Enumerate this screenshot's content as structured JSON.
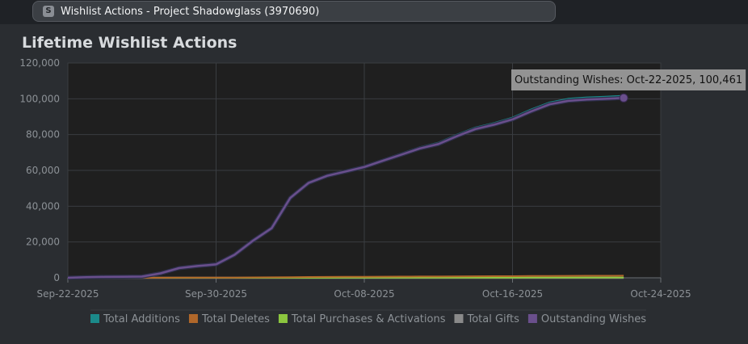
{
  "window": {
    "favicon_letter": "S",
    "tab_title": "Wishlist Actions - Project Shadowglass (3970690)"
  },
  "page": {
    "title": "Lifetime Wishlist Actions"
  },
  "tooltip": {
    "text": "Outstanding Wishes: Oct-22-2025, 100,461"
  },
  "colors": {
    "plot_background": "#1f1f1f",
    "grid": "#3a3d41",
    "total_additions": "#1b8a8a",
    "total_deletes": "#b0672a",
    "total_purchases": "#8cc63f",
    "total_gifts": "#8a8a8a",
    "outstanding_wishes": "#6a4f8c"
  },
  "chart_data": {
    "type": "line",
    "title": "Lifetime Wishlist Actions",
    "x_ticks": [
      "Sep-22-2025",
      "Sep-30-2025",
      "Oct-08-2025",
      "Oct-16-2025",
      "Oct-24-2025"
    ],
    "x_range": [
      "2025-09-22",
      "2025-10-24"
    ],
    "y_ticks": [
      "0",
      "20,000",
      "40,000",
      "60,000",
      "80,000",
      "100,000",
      "120,000"
    ],
    "ylim": [
      0,
      120000
    ],
    "grid": true,
    "legend_position": "bottom",
    "x": [
      "2025-09-22",
      "2025-09-23",
      "2025-09-24",
      "2025-09-25",
      "2025-09-26",
      "2025-09-27",
      "2025-09-28",
      "2025-09-29",
      "2025-09-30",
      "2025-10-01",
      "2025-10-02",
      "2025-10-03",
      "2025-10-04",
      "2025-10-05",
      "2025-10-06",
      "2025-10-07",
      "2025-10-08",
      "2025-10-09",
      "2025-10-10",
      "2025-10-11",
      "2025-10-12",
      "2025-10-13",
      "2025-10-14",
      "2025-10-15",
      "2025-10-16",
      "2025-10-17",
      "2025-10-18",
      "2025-10-19",
      "2025-10-20",
      "2025-10-21",
      "2025-10-22"
    ],
    "series": [
      {
        "name": "Total Additions",
        "color": "#1b8a8a",
        "values": [
          0,
          300,
          500,
          600,
          700,
          2500,
          5500,
          6700,
          7600,
          13000,
          21000,
          28000,
          45000,
          53500,
          57500,
          60000,
          62500,
          66000,
          69500,
          73000,
          75500,
          80000,
          84000,
          86500,
          89500,
          94000,
          98000,
          100000,
          100800,
          101200,
          101700
        ]
      },
      {
        "name": "Total Deletes",
        "color": "#b0672a",
        "values": [
          0,
          5,
          10,
          15,
          20,
          40,
          70,
          90,
          110,
          150,
          210,
          270,
          380,
          450,
          500,
          540,
          580,
          620,
          660,
          700,
          740,
          790,
          840,
          880,
          920,
          980,
          1040,
          1090,
          1120,
          1150,
          1180
        ]
      },
      {
        "name": "Total Purchases & Activations",
        "color": "#8cc63f",
        "values": [
          0,
          0,
          0,
          0,
          0,
          1,
          2,
          3,
          4,
          6,
          8,
          10,
          14,
          18,
          22,
          26,
          30,
          34,
          38,
          42,
          46,
          50,
          55,
          60,
          65,
          70,
          75,
          80,
          84,
          88,
          92
        ]
      },
      {
        "name": "Total Gifts",
        "color": "#8a8a8a",
        "values": [
          0,
          0,
          0,
          0,
          0,
          0,
          0,
          0,
          1,
          1,
          1,
          1,
          2,
          2,
          2,
          2,
          3,
          3,
          3,
          3,
          4,
          4,
          4,
          4,
          5,
          5,
          5,
          5,
          6,
          6,
          6
        ]
      },
      {
        "name": "Outstanding Wishes",
        "color": "#6a4f8c",
        "values": [
          0,
          295,
          490,
          585,
          680,
          2459,
          5428,
          6607,
          7486,
          12844,
          20782,
          27719,
          44604,
          53032,
          56976,
          59432,
          61887,
          65346,
          68799,
          72255,
          74710,
          79146,
          83101,
          85556,
          88510,
          92950,
          96880,
          98825,
          99594,
          99962,
          100461
        ]
      }
    ]
  }
}
